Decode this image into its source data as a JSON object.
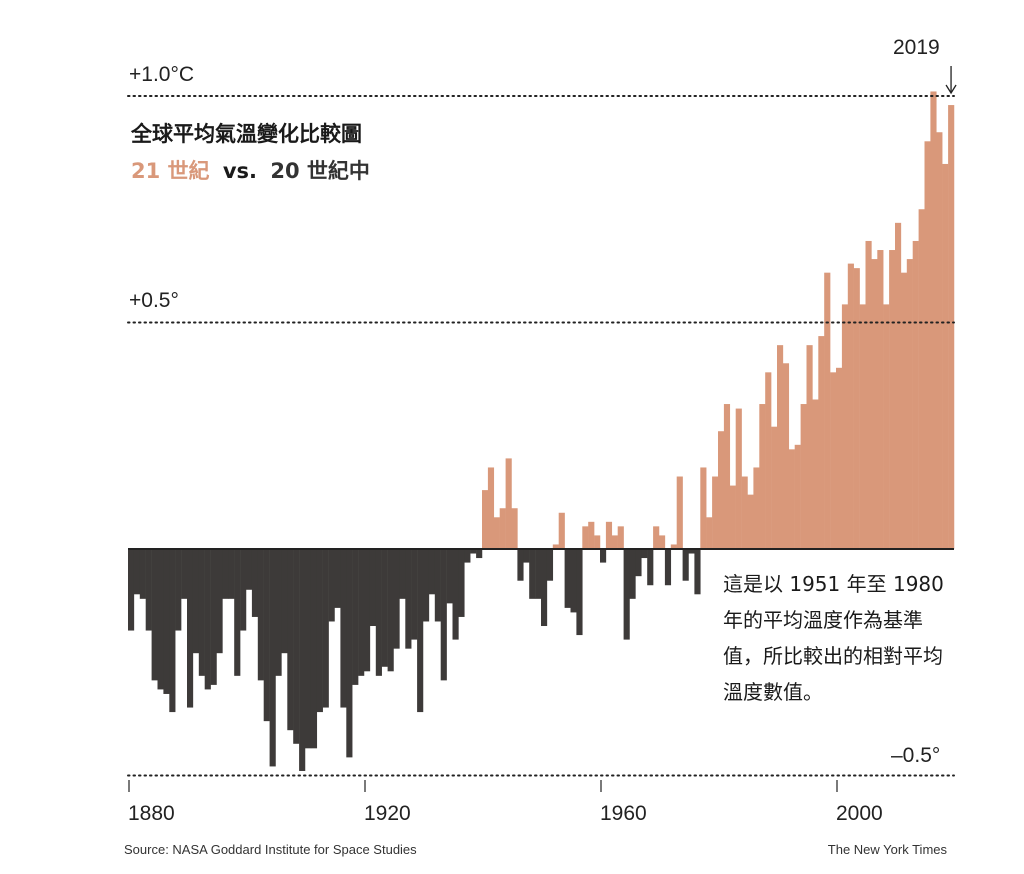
{
  "title": "全球平均氣溫變化比較圖",
  "subtitle": {
    "warm": "21 世紀",
    "vs": "vs.",
    "cold": "20 世紀中"
  },
  "note": "這是以 1951 年至 1980 年的平均溫度作為基準值，所比較出的相對平均溫度數值。",
  "source": "Source: NASA Goddard Institute for Space Studies",
  "credit": "The New York Times",
  "colors": {
    "positive": "#d9987a",
    "negative": "#3d3a39",
    "axis": "#222222"
  },
  "chart_data": {
    "type": "bar",
    "x_start": 1880,
    "x_end": 2019,
    "ylim": [
      -0.5,
      1.0
    ],
    "grid_lines": [
      {
        "value": 1.0,
        "label": "+1.0°C"
      },
      {
        "value": 0.5,
        "label": "+0.5°"
      },
      {
        "value": -0.5,
        "label": "–0.5°"
      }
    ],
    "xticks": [
      1880,
      1920,
      1960,
      2000
    ],
    "callout": {
      "label": "2019"
    },
    "values": [
      -0.18,
      -0.1,
      -0.11,
      -0.18,
      -0.29,
      -0.31,
      -0.32,
      -0.36,
      -0.18,
      -0.11,
      -0.35,
      -0.23,
      -0.28,
      -0.31,
      -0.3,
      -0.23,
      -0.11,
      -0.11,
      -0.28,
      -0.18,
      -0.09,
      -0.15,
      -0.29,
      -0.38,
      -0.48,
      -0.28,
      -0.23,
      -0.4,
      -0.43,
      -0.49,
      -0.44,
      -0.44,
      -0.36,
      -0.35,
      -0.16,
      -0.13,
      -0.35,
      -0.46,
      -0.3,
      -0.28,
      -0.27,
      -0.17,
      -0.28,
      -0.26,
      -0.27,
      -0.22,
      -0.11,
      -0.22,
      -0.2,
      -0.36,
      -0.16,
      -0.1,
      -0.16,
      -0.29,
      -0.12,
      -0.2,
      -0.15,
      -0.03,
      -0.01,
      -0.02,
      0.13,
      0.18,
      0.07,
      0.09,
      0.2,
      0.09,
      -0.07,
      -0.03,
      -0.11,
      -0.11,
      -0.17,
      -0.07,
      0.01,
      0.08,
      -0.13,
      -0.14,
      -0.19,
      0.05,
      0.06,
      0.03,
      -0.03,
      0.06,
      0.03,
      0.05,
      -0.2,
      -0.11,
      -0.06,
      -0.02,
      -0.08,
      0.05,
      0.03,
      -0.08,
      0.01,
      0.16,
      -0.07,
      -0.01,
      -0.1,
      0.18,
      0.07,
      0.16,
      0.26,
      0.32,
      0.14,
      0.31,
      0.16,
      0.12,
      0.18,
      0.32,
      0.39,
      0.27,
      0.45,
      0.41,
      0.22,
      0.23,
      0.32,
      0.45,
      0.33,
      0.47,
      0.61,
      0.39,
      0.4,
      0.54,
      0.63,
      0.62,
      0.54,
      0.68,
      0.64,
      0.66,
      0.54,
      0.66,
      0.72,
      0.61,
      0.64,
      0.68,
      0.75,
      0.9,
      1.01,
      0.92,
      0.85,
      0.98
    ]
  }
}
